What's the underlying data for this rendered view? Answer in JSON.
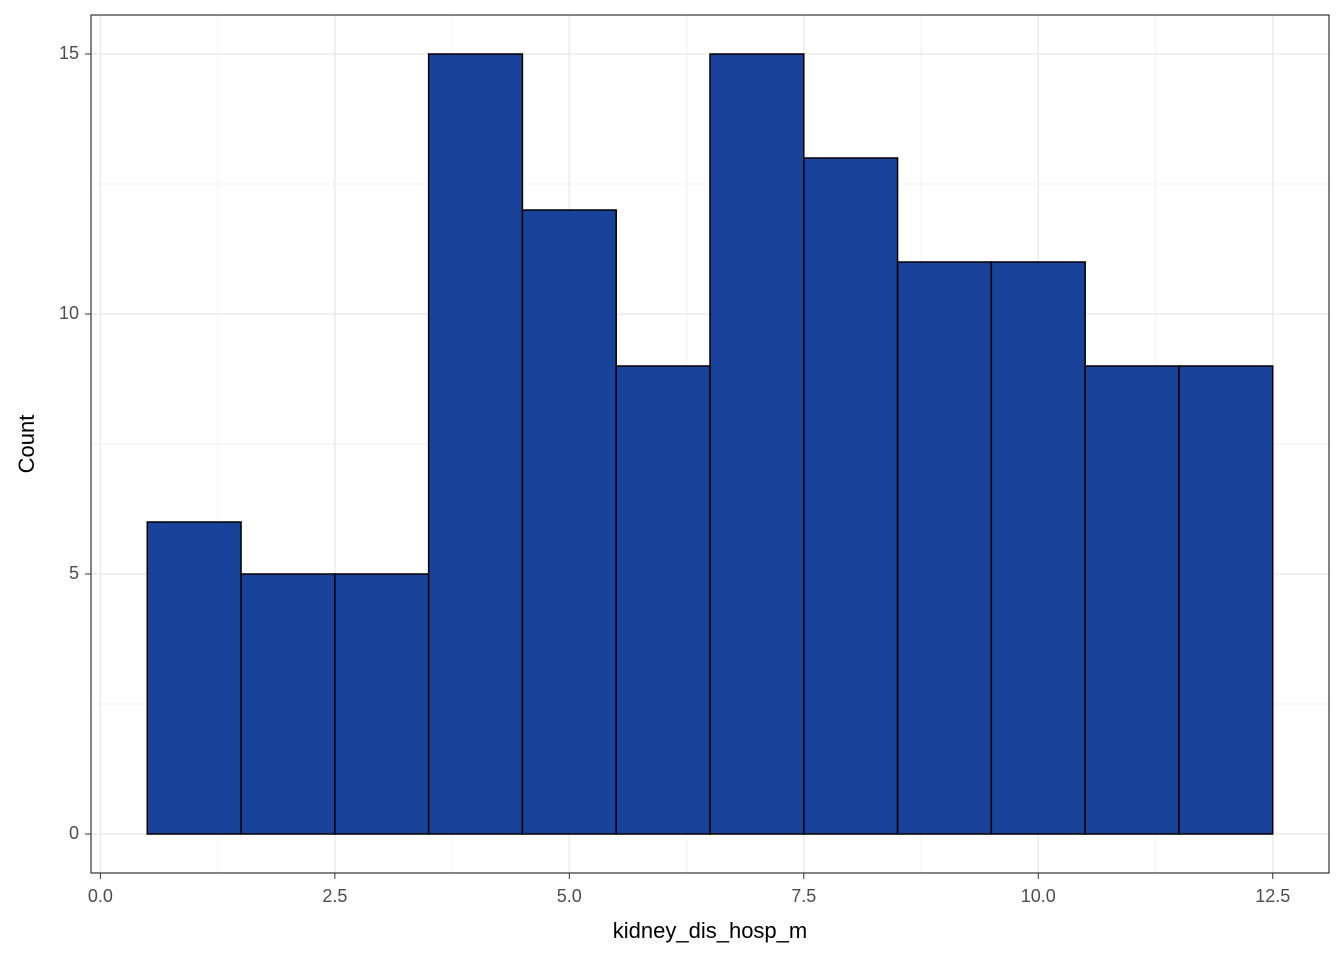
{
  "chart_data": {
    "type": "histogram",
    "x_label": "kidney_dis_hosp_m",
    "y_label": "Count",
    "bins": [
      0.5,
      1.5,
      2.5,
      3.5,
      4.5,
      5.5,
      6.5,
      7.5,
      8.5,
      9.5,
      10.5,
      11.5,
      12.5
    ],
    "values": [
      6,
      5,
      5,
      15,
      12,
      9,
      15,
      13,
      11,
      11,
      9,
      9
    ],
    "color": "#19439a",
    "edge_color": "#000000",
    "xlim": [
      -0.1,
      13.1
    ],
    "xticks": [
      {
        "value": 0,
        "label": "0.0"
      },
      2.5,
      {
        "value": 5,
        "label": "5.0"
      },
      7.5,
      {
        "value": 10,
        "label": "10.0"
      },
      12.5
    ],
    "ylim": [
      -0.75,
      15.75
    ],
    "yticks": [
      0,
      5,
      10,
      15
    ],
    "grid": true
  }
}
